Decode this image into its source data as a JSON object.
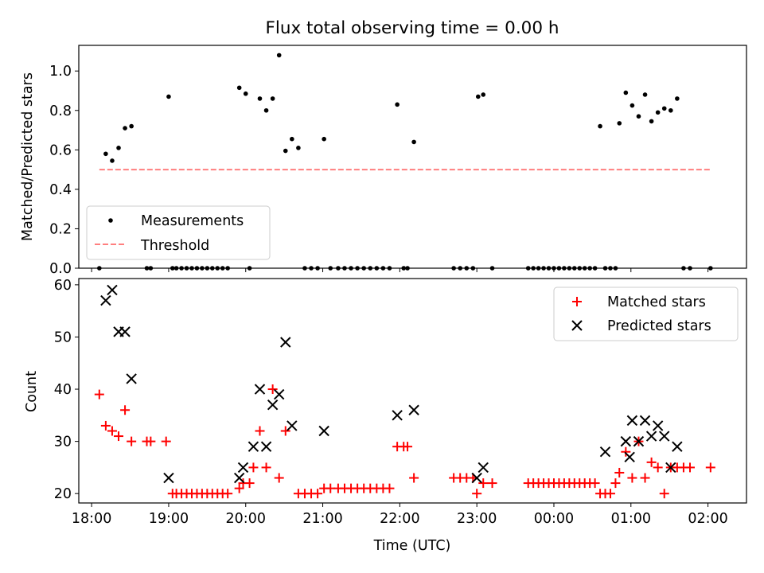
{
  "chart_data": [
    {
      "type": "scatter",
      "title": "Flux total observing time = 0.00 h",
      "xlabel": "",
      "ylabel": "Matched/Predicted stars",
      "xlim": [
        "17:50",
        "02:30"
      ],
      "ylim": [
        0,
        1.13
      ],
      "yticks": [
        0.0,
        0.2,
        0.4,
        0.6,
        0.8,
        1.0
      ],
      "legend": {
        "placement": "lower-left",
        "entries": [
          "Measurements",
          "Threshold"
        ]
      },
      "threshold": {
        "name": "Threshold",
        "value": 0.5,
        "x": [
          "18:06",
          "02:02"
        ],
        "color": "#ff7f7f"
      },
      "series": [
        {
          "name": "Measurements",
          "marker": "dot",
          "color": "#000000",
          "points": [
            [
              "18:06",
              0
            ],
            [
              "18:11",
              0.58
            ],
            [
              "18:16",
              0.545
            ],
            [
              "18:21",
              0.61
            ],
            [
              "18:26",
              0.71
            ],
            [
              "18:31",
              0.72
            ],
            [
              "18:43",
              0
            ],
            [
              "18:46",
              0
            ],
            [
              "19:00",
              0.87
            ],
            [
              "19:03",
              0
            ],
            [
              "19:06",
              0
            ],
            [
              "19:10",
              0
            ],
            [
              "19:14",
              0
            ],
            [
              "19:18",
              0
            ],
            [
              "19:22",
              0
            ],
            [
              "19:26",
              0
            ],
            [
              "19:30",
              0
            ],
            [
              "19:34",
              0
            ],
            [
              "19:38",
              0
            ],
            [
              "19:42",
              0
            ],
            [
              "19:46",
              0
            ],
            [
              "19:55",
              0.915
            ],
            [
              "20:00",
              0.885
            ],
            [
              "20:03",
              0
            ],
            [
              "20:11",
              0.86
            ],
            [
              "20:16",
              0.8
            ],
            [
              "20:21",
              0.86
            ],
            [
              "20:26",
              1.08
            ],
            [
              "20:31",
              0.595
            ],
            [
              "20:36",
              0.655
            ],
            [
              "20:41",
              0.61
            ],
            [
              "20:46",
              0
            ],
            [
              "20:51",
              0
            ],
            [
              "20:56",
              0
            ],
            [
              "21:01",
              0.655
            ],
            [
              "21:06",
              0
            ],
            [
              "21:12",
              0
            ],
            [
              "21:17",
              0
            ],
            [
              "21:22",
              0
            ],
            [
              "21:27",
              0
            ],
            [
              "21:32",
              0
            ],
            [
              "21:37",
              0
            ],
            [
              "21:42",
              0
            ],
            [
              "21:47",
              0
            ],
            [
              "21:52",
              0
            ],
            [
              "21:58",
              0.83
            ],
            [
              "22:03",
              0
            ],
            [
              "22:06",
              0
            ],
            [
              "22:11",
              0.64
            ],
            [
              "22:42",
              0
            ],
            [
              "22:47",
              0
            ],
            [
              "22:52",
              0
            ],
            [
              "22:57",
              0
            ],
            [
              "23:01",
              0.87
            ],
            [
              "23:05",
              0.88
            ],
            [
              "23:12",
              0
            ],
            [
              "23:40",
              0
            ],
            [
              "23:44",
              0
            ],
            [
              "23:48",
              0
            ],
            [
              "23:52",
              0
            ],
            [
              "23:56",
              0
            ],
            [
              "00:00",
              0
            ],
            [
              "00:04",
              0
            ],
            [
              "00:08",
              0
            ],
            [
              "00:12",
              0
            ],
            [
              "00:16",
              0
            ],
            [
              "00:20",
              0
            ],
            [
              "00:24",
              0
            ],
            [
              "00:28",
              0
            ],
            [
              "00:32",
              0
            ],
            [
              "00:36",
              0.72
            ],
            [
              "00:40",
              0
            ],
            [
              "00:44",
              0
            ],
            [
              "00:48",
              0
            ],
            [
              "00:51",
              0.735
            ],
            [
              "00:56",
              0.89
            ],
            [
              "01:01",
              0.825
            ],
            [
              "01:06",
              0.77
            ],
            [
              "01:11",
              0.88
            ],
            [
              "01:16",
              0.745
            ],
            [
              "01:21",
              0.79
            ],
            [
              "01:26",
              0.81
            ],
            [
              "01:31",
              0.8
            ],
            [
              "01:36",
              0.86
            ],
            [
              "01:41",
              0
            ],
            [
              "01:46",
              0
            ],
            [
              "02:02",
              0
            ]
          ]
        }
      ]
    },
    {
      "type": "scatter",
      "title": "",
      "xlabel": "Time (UTC)",
      "ylabel": "Count",
      "xlim": [
        "17:50",
        "02:30"
      ],
      "ylim": [
        18.2,
        61.2
      ],
      "yticks": [
        20,
        30,
        40,
        50,
        60
      ],
      "xticks": [
        "18:00",
        "19:00",
        "20:00",
        "21:00",
        "22:00",
        "23:00",
        "00:00",
        "01:00",
        "02:00"
      ],
      "legend": {
        "placement": "upper-right",
        "entries": [
          "Matched stars",
          "Predicted stars"
        ]
      },
      "series": [
        {
          "name": "Matched stars",
          "marker": "plus",
          "color": "#ff0000",
          "points": [
            [
              "18:06",
              39
            ],
            [
              "18:11",
              33
            ],
            [
              "18:16",
              32
            ],
            [
              "18:21",
              31
            ],
            [
              "18:26",
              36
            ],
            [
              "18:31",
              30
            ],
            [
              "18:43",
              30
            ],
            [
              "18:46",
              30
            ],
            [
              "18:58",
              30
            ],
            [
              "19:03",
              20
            ],
            [
              "19:06",
              20
            ],
            [
              "19:10",
              20
            ],
            [
              "19:14",
              20
            ],
            [
              "19:18",
              20
            ],
            [
              "19:22",
              20
            ],
            [
              "19:26",
              20
            ],
            [
              "19:30",
              20
            ],
            [
              "19:34",
              20
            ],
            [
              "19:38",
              20
            ],
            [
              "19:42",
              20
            ],
            [
              "19:46",
              20
            ],
            [
              "19:55",
              21
            ],
            [
              "19:58",
              22
            ],
            [
              "20:03",
              22
            ],
            [
              "20:06",
              25
            ],
            [
              "20:11",
              32
            ],
            [
              "20:16",
              25
            ],
            [
              "20:21",
              40
            ],
            [
              "20:26",
              23
            ],
            [
              "20:31",
              32
            ],
            [
              "20:41",
              20
            ],
            [
              "20:46",
              20
            ],
            [
              "20:51",
              20
            ],
            [
              "20:56",
              20
            ],
            [
              "21:01",
              21
            ],
            [
              "21:06",
              21
            ],
            [
              "21:12",
              21
            ],
            [
              "21:17",
              21
            ],
            [
              "21:22",
              21
            ],
            [
              "21:27",
              21
            ],
            [
              "21:32",
              21
            ],
            [
              "21:37",
              21
            ],
            [
              "21:42",
              21
            ],
            [
              "21:47",
              21
            ],
            [
              "21:52",
              21
            ],
            [
              "21:58",
              29
            ],
            [
              "22:03",
              29
            ],
            [
              "22:06",
              29
            ],
            [
              "22:11",
              23
            ],
            [
              "22:42",
              23
            ],
            [
              "22:47",
              23
            ],
            [
              "22:52",
              23
            ],
            [
              "22:57",
              23
            ],
            [
              "23:00",
              20
            ],
            [
              "23:05",
              22
            ],
            [
              "23:12",
              22
            ],
            [
              "23:40",
              22
            ],
            [
              "23:44",
              22
            ],
            [
              "23:48",
              22
            ],
            [
              "23:52",
              22
            ],
            [
              "23:56",
              22
            ],
            [
              "00:00",
              22
            ],
            [
              "00:04",
              22
            ],
            [
              "00:08",
              22
            ],
            [
              "00:12",
              22
            ],
            [
              "00:16",
              22
            ],
            [
              "00:20",
              22
            ],
            [
              "00:24",
              22
            ],
            [
              "00:28",
              22
            ],
            [
              "00:32",
              22
            ],
            [
              "00:36",
              20
            ],
            [
              "00:40",
              20
            ],
            [
              "00:44",
              20
            ],
            [
              "00:48",
              22
            ],
            [
              "00:51",
              24
            ],
            [
              "00:56",
              28
            ],
            [
              "01:01",
              23
            ],
            [
              "01:06",
              30
            ],
            [
              "01:11",
              23
            ],
            [
              "01:16",
              26
            ],
            [
              "01:21",
              25
            ],
            [
              "01:26",
              20
            ],
            [
              "01:31",
              25
            ],
            [
              "01:36",
              25
            ],
            [
              "01:41",
              25
            ],
            [
              "01:46",
              25
            ],
            [
              "02:02",
              25
            ]
          ]
        },
        {
          "name": "Predicted stars",
          "marker": "x",
          "color": "#000000",
          "points": [
            [
              "18:11",
              57
            ],
            [
              "18:16",
              59
            ],
            [
              "18:21",
              51
            ],
            [
              "18:26",
              51
            ],
            [
              "18:31",
              42
            ],
            [
              "19:00",
              23
            ],
            [
              "19:55",
              23
            ],
            [
              "19:58",
              25
            ],
            [
              "20:06",
              29
            ],
            [
              "20:11",
              40
            ],
            [
              "20:16",
              29
            ],
            [
              "20:21",
              37
            ],
            [
              "20:26",
              39
            ],
            [
              "20:31",
              49
            ],
            [
              "20:36",
              33
            ],
            [
              "21:01",
              32
            ],
            [
              "21:58",
              35
            ],
            [
              "22:11",
              36
            ],
            [
              "23:00",
              23
            ],
            [
              "23:05",
              25
            ],
            [
              "00:40",
              28
            ],
            [
              "00:56",
              30
            ],
            [
              "00:59",
              27
            ],
            [
              "01:01",
              34
            ],
            [
              "01:06",
              30
            ],
            [
              "01:11",
              34
            ],
            [
              "01:16",
              31
            ],
            [
              "01:21",
              33
            ],
            [
              "01:26",
              31
            ],
            [
              "01:31",
              25
            ],
            [
              "01:36",
              29
            ]
          ]
        }
      ]
    }
  ]
}
